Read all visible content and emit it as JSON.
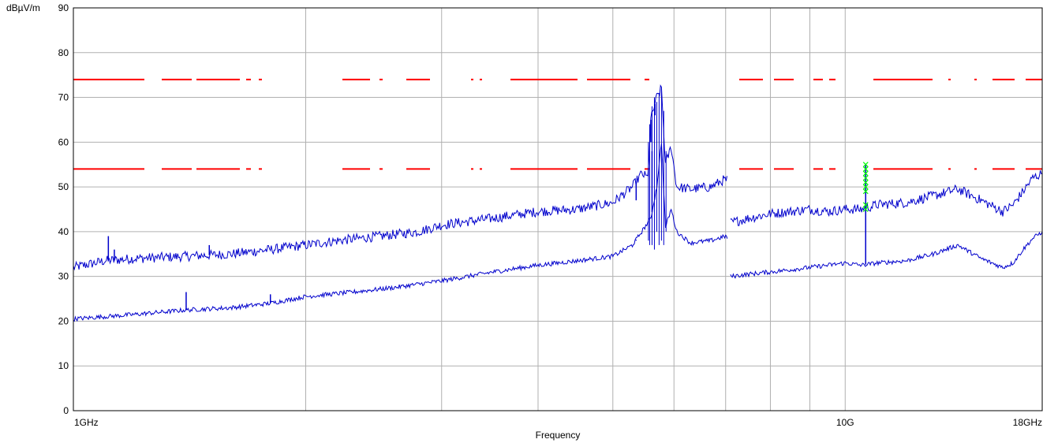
{
  "chart_data": {
    "type": "line",
    "ylabel": "dBµV/m",
    "xlabel": "Frequency",
    "x_scale": "log",
    "x_unit": "GHz",
    "xlim": [
      1,
      18
    ],
    "ylim": [
      0,
      90
    ],
    "grid": true,
    "y_ticks": [
      0,
      10,
      20,
      30,
      40,
      50,
      60,
      70,
      80,
      90
    ],
    "x_tick_labels": [
      {
        "value": 1,
        "label": "1GHz"
      },
      {
        "value": 10,
        "label": "10G"
      },
      {
        "value": 18,
        "label": "18GHz"
      }
    ],
    "x_grid": [
      2,
      3,
      4,
      5,
      6,
      7,
      8,
      9,
      10
    ],
    "limit_lines": [
      {
        "value": 74,
        "color": "#ff0000",
        "style": "dashed"
      },
      {
        "value": 54,
        "color": "#ff0000",
        "style": "dashed"
      }
    ],
    "series": [
      {
        "color": "#0000cc",
        "points": [
          [
            1,
            32
          ],
          [
            1.1,
            33.5
          ],
          [
            1.2,
            34
          ],
          [
            1.4,
            34.5
          ],
          [
            1.6,
            35
          ],
          [
            1.8,
            36
          ],
          [
            2.0,
            37
          ],
          [
            2.2,
            38
          ],
          [
            2.5,
            39
          ],
          [
            2.8,
            40
          ],
          [
            3.0,
            41.5
          ],
          [
            3.5,
            43
          ],
          [
            4.0,
            44.5
          ],
          [
            4.5,
            45
          ],
          [
            5.0,
            46.5
          ],
          [
            5.3,
            50
          ],
          [
            5.45,
            53
          ],
          [
            5.55,
            52
          ],
          [
            5.6,
            65
          ],
          [
            5.7,
            70
          ],
          [
            5.78,
            72
          ],
          [
            5.85,
            55
          ],
          [
            5.95,
            59
          ],
          [
            6.05,
            50
          ],
          [
            6.3,
            49.5
          ],
          [
            6.7,
            50
          ],
          [
            6.95,
            51.5
          ],
          [
            7.05,
            51.5
          ],
          [
            7.1,
            42
          ],
          [
            7.5,
            43
          ],
          [
            8.0,
            44
          ],
          [
            8.5,
            44.5
          ],
          [
            9.0,
            45
          ],
          [
            9.5,
            44.5
          ],
          [
            10.0,
            45
          ],
          [
            10.5,
            45
          ],
          [
            11.0,
            46
          ],
          [
            12.0,
            46.5
          ],
          [
            13.0,
            48
          ],
          [
            14.0,
            49.5
          ],
          [
            15.0,
            47
          ],
          [
            16.0,
            44.5
          ],
          [
            16.5,
            46
          ],
          [
            17.0,
            49
          ],
          [
            17.5,
            52
          ],
          [
            18,
            53
          ]
        ],
        "spikes": [
          [
            1.11,
            39
          ],
          [
            1.13,
            36
          ],
          [
            1.5,
            37
          ],
          [
            5.36,
            47
          ],
          [
            5.6,
            60
          ],
          [
            5.67,
            66
          ],
          [
            5.78,
            72
          ],
          [
            5.95,
            59
          ],
          [
            10.63,
            55
          ]
        ]
      },
      {
        "color": "#0000cc",
        "points": [
          [
            1,
            20.5
          ],
          [
            1.2,
            21.5
          ],
          [
            1.4,
            22.5
          ],
          [
            1.6,
            23
          ],
          [
            1.8,
            24
          ],
          [
            2.0,
            25.5
          ],
          [
            2.3,
            26.5
          ],
          [
            2.6,
            27.5
          ],
          [
            3.0,
            29
          ],
          [
            3.5,
            31
          ],
          [
            4.0,
            32.5
          ],
          [
            4.5,
            33.5
          ],
          [
            5.0,
            34.5
          ],
          [
            5.3,
            37
          ],
          [
            5.45,
            40
          ],
          [
            5.55,
            42
          ],
          [
            5.6,
            43
          ],
          [
            5.7,
            50
          ],
          [
            5.78,
            60
          ],
          [
            5.85,
            41
          ],
          [
            5.95,
            45
          ],
          [
            6.05,
            40
          ],
          [
            6.3,
            37.5
          ],
          [
            6.7,
            38
          ],
          [
            7.0,
            39
          ],
          [
            7.05,
            38.5
          ],
          [
            7.1,
            30
          ],
          [
            7.5,
            30.5
          ],
          [
            8.0,
            31
          ],
          [
            8.5,
            31.5
          ],
          [
            9.0,
            32
          ],
          [
            9.5,
            32.5
          ],
          [
            10.0,
            33
          ],
          [
            10.5,
            32.5
          ],
          [
            11.0,
            33
          ],
          [
            12.0,
            33.5
          ],
          [
            13.0,
            35
          ],
          [
            14.0,
            37
          ],
          [
            15.0,
            34
          ],
          [
            16.0,
            32
          ],
          [
            16.5,
            33
          ],
          [
            17.0,
            36
          ],
          [
            17.5,
            38.5
          ],
          [
            18,
            40
          ]
        ],
        "spikes": [
          [
            1.4,
            26.5
          ],
          [
            1.8,
            26
          ],
          [
            5.36,
            38
          ],
          [
            5.62,
            58
          ],
          [
            10.63,
            46
          ]
        ]
      }
    ],
    "marker_points": {
      "color": "#00ff00",
      "symbol": "x",
      "x": 10.63,
      "y": [
        45,
        46,
        49,
        50,
        51,
        52,
        53,
        54,
        55
      ]
    }
  }
}
